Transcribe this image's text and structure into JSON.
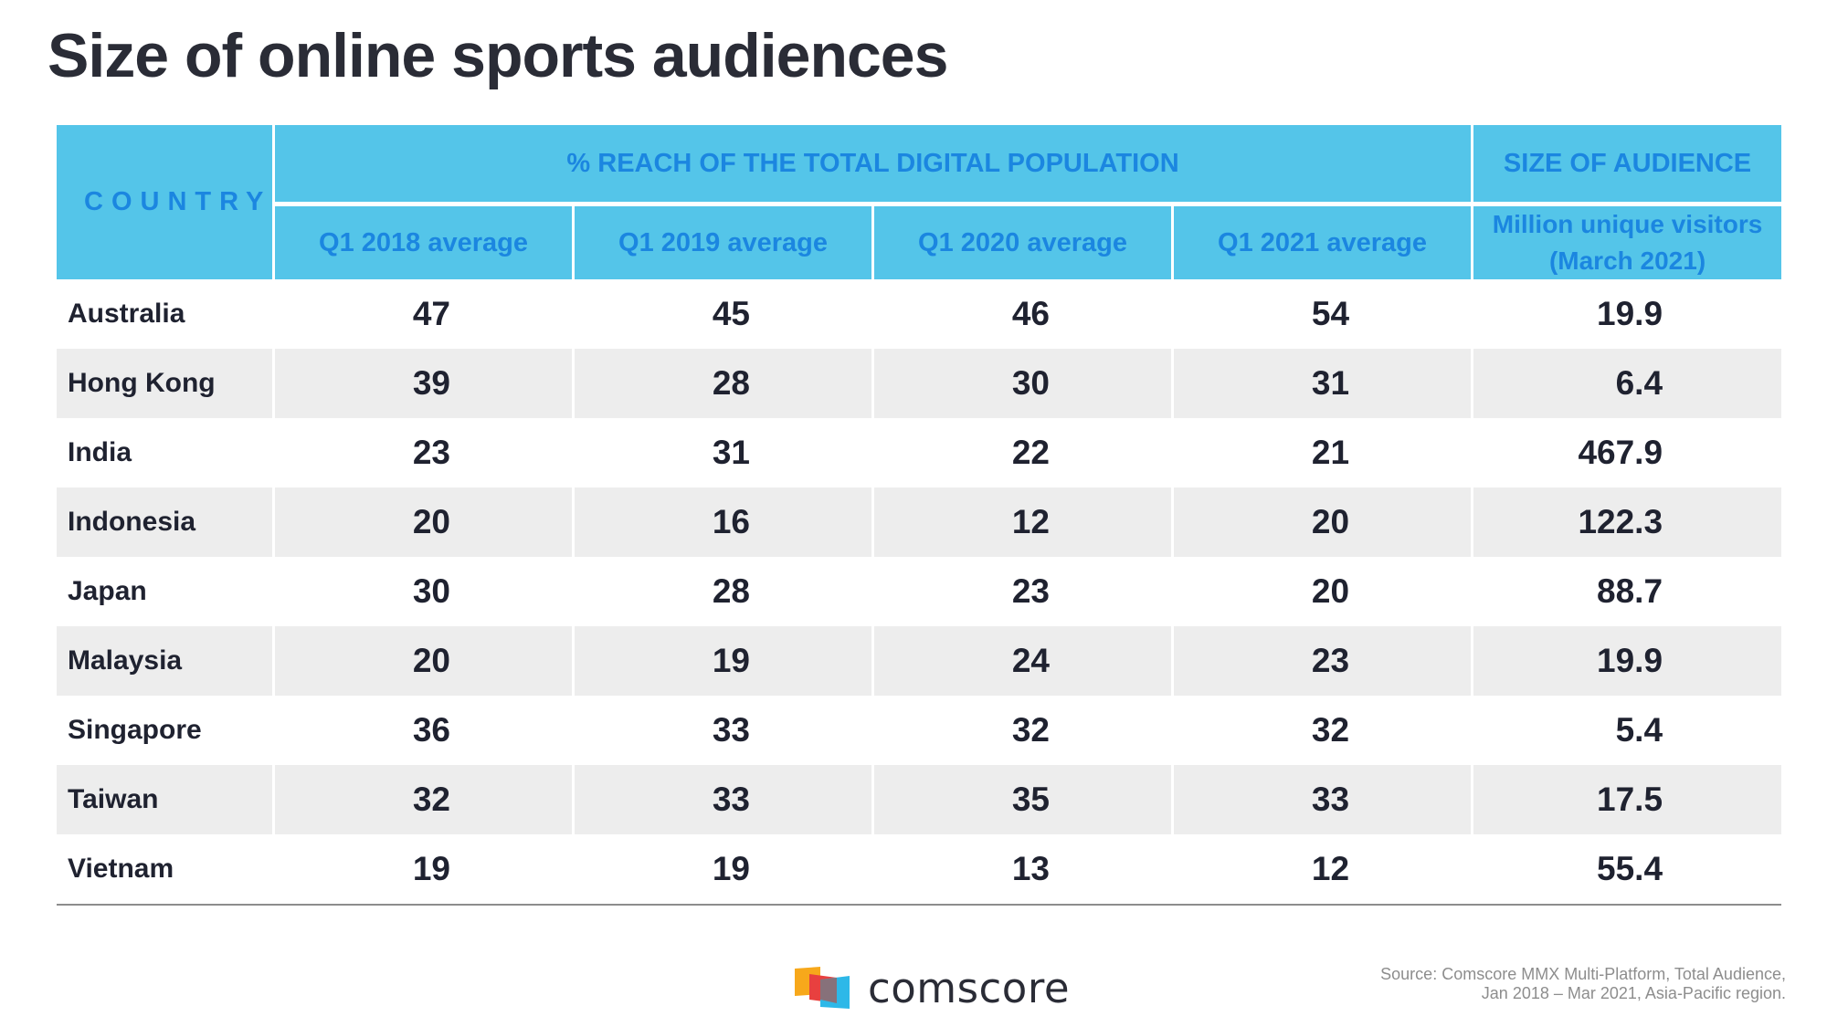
{
  "page_title": "Size of online sports audiences",
  "chart_data": {
    "type": "table",
    "title": "Size of online sports audiences",
    "group_headers": {
      "country": "COUNTRY",
      "reach": "% REACH OF THE TOTAL DIGITAL POPULATION",
      "size": "SIZE OF AUDIENCE"
    },
    "columns": [
      "Q1 2018 average",
      "Q1 2019 average",
      "Q1 2020 average",
      "Q1 2021 average"
    ],
    "size_column": "Million unique visitors (March 2021)",
    "rows": [
      {
        "country": "Australia",
        "values": [
          "47",
          "45",
          "46",
          "54"
        ],
        "size": "19.9"
      },
      {
        "country": "Hong Kong",
        "values": [
          "39",
          "28",
          "30",
          "31"
        ],
        "size": "6.4"
      },
      {
        "country": "India",
        "values": [
          "23",
          "31",
          "22",
          "21"
        ],
        "size": "467.9"
      },
      {
        "country": "Indonesia",
        "values": [
          "20",
          "16",
          "12",
          "20"
        ],
        "size": "122.3"
      },
      {
        "country": "Japan",
        "values": [
          "30",
          "28",
          "23",
          "20"
        ],
        "size": "88.7"
      },
      {
        "country": "Malaysia",
        "values": [
          "20",
          "19",
          "24",
          "23"
        ],
        "size": "19.9"
      },
      {
        "country": "Singapore",
        "values": [
          "36",
          "33",
          "32",
          "32"
        ],
        "size": "5.4"
      },
      {
        "country": "Taiwan",
        "values": [
          "32",
          "33",
          "35",
          "33"
        ],
        "size": "17.5"
      },
      {
        "country": "Vietnam",
        "values": [
          "19",
          "19",
          "13",
          "12"
        ],
        "size": "55.4"
      }
    ]
  },
  "footer": {
    "logo_text": "comscore",
    "source_line1": "Source: Comscore MMX Multi-Platform, Total Audience,",
    "source_line2": "Jan 2018 – Mar 2021, Asia-Pacific region."
  },
  "colors": {
    "header_bg": "#54c5e9",
    "header_text": "#1b86e0",
    "row_alt": "#ededed",
    "logo_orange": "#f7a81b",
    "logo_red": "#e8403f",
    "logo_cyan": "#2db8e8"
  }
}
